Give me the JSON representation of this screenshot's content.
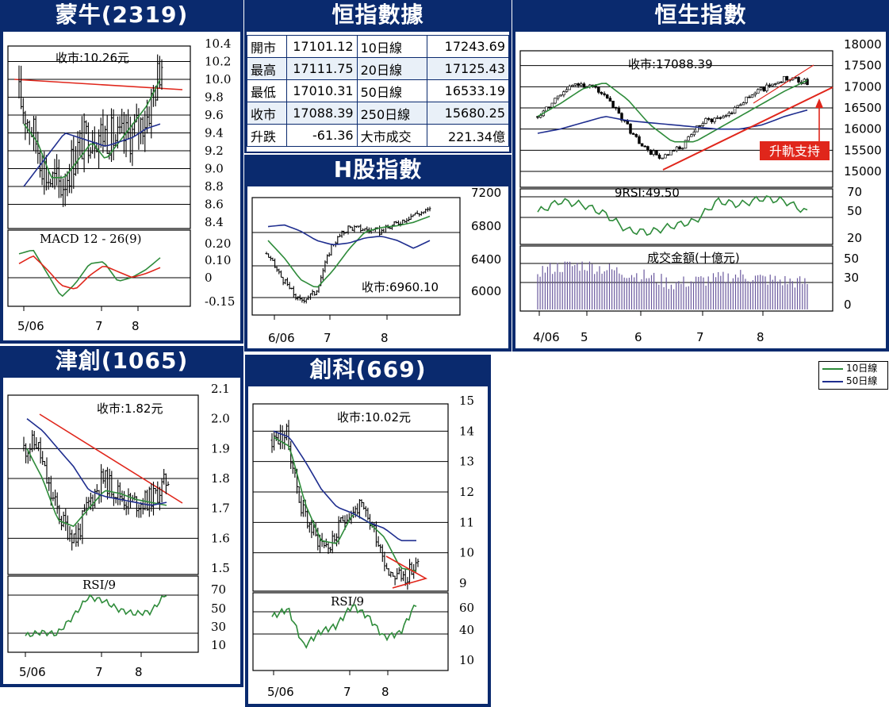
{
  "legend": {
    "ma10": "10日線",
    "ma50": "50日線",
    "ma10_color": "#2e8b3a",
    "ma50_color": "#1f2e8f"
  },
  "mengniu": {
    "title": "蒙牛(2319)",
    "close_label": "收市:10.26元",
    "indicator_label": "MACD 12 - 26(9)",
    "price_ticks": [
      "10.4",
      "10.2",
      "10.0",
      "9.8",
      "9.6",
      "9.4",
      "9.2",
      "9.0",
      "8.8",
      "8.6",
      "8.4"
    ],
    "macd_ticks": [
      "0.20",
      "0.10",
      "0",
      "-0.15"
    ],
    "x_ticks": [
      "5/06",
      "7",
      "8"
    ]
  },
  "hsi_data": {
    "title": "恒指數據",
    "rows": [
      {
        "l1": "開市",
        "v1": "17101.12",
        "l2": "10日線",
        "v2": "17243.69"
      },
      {
        "l1": "最高",
        "v1": "17111.75",
        "l2": "20日線",
        "v2": "17125.43"
      },
      {
        "l1": "最低",
        "v1": "17010.31",
        "l2": "50日線",
        "v2": "16533.19"
      },
      {
        "l1": "收市",
        "v1": "17088.39",
        "l2": "250日線",
        "v2": "15680.25"
      },
      {
        "l1": "升跌",
        "v1": "-61.36",
        "l2": "大市成交",
        "v2": "221.34億"
      }
    ]
  },
  "hshares": {
    "title": "H股指數",
    "close_label": "收市:6960.10",
    "price_ticks": [
      "7200",
      "6800",
      "6400",
      "6000"
    ],
    "x_ticks": [
      "6/06",
      "7",
      "8"
    ]
  },
  "hsi": {
    "title": "恒生指數",
    "close_label": "收市:17088.39",
    "annotation": "升軌支持",
    "rsi_label": "9RSI:49.50",
    "volume_label": "成交金額(十億元)",
    "price_ticks": [
      "18000",
      "17500",
      "17000",
      "16500",
      "16000",
      "15500",
      "15000"
    ],
    "rsi_ticks": [
      "70",
      "50",
      "20"
    ],
    "volume_ticks": [
      "50",
      "30",
      "0"
    ],
    "x_ticks": [
      "4/06",
      "5",
      "6",
      "7",
      "8"
    ]
  },
  "tianjin": {
    "title": "津創(1065)",
    "close_label": "收市:1.82元",
    "rsi_label": "RSI/9",
    "price_ticks": [
      "2.1",
      "2.0",
      "1.9",
      "1.8",
      "1.7",
      "1.6",
      "1.5"
    ],
    "rsi_ticks": [
      "70",
      "50",
      "30",
      "10"
    ],
    "x_ticks": [
      "5/06",
      "7",
      "8"
    ]
  },
  "chuangke": {
    "title": "創科(669)",
    "close_label": "收市:10.02元",
    "rsi_label": "RSI/9",
    "price_ticks": [
      "15",
      "14",
      "13",
      "12",
      "11",
      "10",
      "9"
    ],
    "rsi_ticks": [
      "60",
      "40",
      "10"
    ],
    "x_ticks": [
      "5/06",
      "7",
      "8"
    ]
  },
  "chart_data": [
    {
      "type": "line",
      "title": "蒙牛(2319)",
      "ylim": [
        8.4,
        10.4
      ],
      "last_close": 10.26,
      "series": [
        {
          "name": "10日線",
          "values": [
            9.5,
            9.3,
            8.9,
            8.9,
            9.1,
            9.3,
            9.1,
            9.3,
            9.5,
            9.7,
            10.0
          ]
        },
        {
          "name": "50日線",
          "values": [
            8.8,
            9.0,
            9.2,
            9.4,
            9.35,
            9.3,
            9.25,
            9.3,
            9.35,
            9.45,
            9.5
          ]
        }
      ],
      "macd": {
        "ylim": [
          -0.15,
          0.2
        ],
        "macd": [
          0.1,
          0.12,
          0.0,
          -0.12,
          -0.05,
          0.05,
          0.06,
          -0.04,
          -0.02,
          0.02,
          0.08
        ],
        "signal": [
          0.05,
          0.09,
          0.02,
          -0.06,
          -0.08,
          -0.01,
          0.04,
          0.01,
          -0.02,
          0.0,
          0.03
        ]
      }
    },
    {
      "type": "line",
      "title": "H股指數",
      "ylim": [
        5900,
        7200
      ],
      "last_close": 6960.1,
      "series": [
        {
          "name": "10日線",
          "values": [
            6650,
            6450,
            6200,
            6100,
            6300,
            6550,
            6750,
            6800,
            6820,
            6860,
            6930
          ]
        },
        {
          "name": "50日線",
          "values": [
            6810,
            6830,
            6760,
            6650,
            6600,
            6620,
            6680,
            6700,
            6650,
            6560,
            6650
          ]
        }
      ]
    },
    {
      "type": "line",
      "title": "恒生指數",
      "ylim": [
        15000,
        18000
      ],
      "last_close": 17088.39,
      "series": [
        {
          "name": "10日線",
          "values": [
            16300,
            16600,
            16950,
            17100,
            16700,
            16100,
            15700,
            15700,
            16000,
            16300,
            16600,
            16900,
            17150
          ]
        },
        {
          "name": "50日線",
          "values": [
            15900,
            16000,
            16150,
            16300,
            16200,
            16150,
            16100,
            16050,
            16000,
            16000,
            16100,
            16300,
            16450
          ]
        }
      ],
      "rsi": {
        "ylim": [
          20,
          70
        ],
        "values": [
          50,
          62,
          58,
          48,
          30,
          28,
          35,
          40,
          62,
          58,
          65,
          62,
          49.5
        ]
      },
      "volume": {
        "ylim": [
          0,
          50
        ],
        "values": [
          38,
          42,
          44,
          40,
          36,
          32,
          25,
          28,
          30,
          34,
          30,
          28,
          26
        ]
      }
    },
    {
      "type": "line",
      "title": "津創(1065)",
      "ylim": [
        1.5,
        2.1
      ],
      "last_close": 1.82,
      "series": [
        {
          "name": "10日線",
          "values": [
            1.9,
            1.8,
            1.66,
            1.64,
            1.7,
            1.76,
            1.75,
            1.73,
            1.72,
            1.71
          ]
        },
        {
          "name": "50日線",
          "values": [
            2.0,
            1.96,
            1.9,
            1.84,
            1.76,
            1.74,
            1.73,
            1.72,
            1.71,
            1.72
          ]
        }
      ],
      "rsi": {
        "ylim": [
          10,
          70
        ],
        "values": [
          20,
          24,
          22,
          40,
          62,
          58,
          48,
          44,
          46,
          66
        ]
      }
    },
    {
      "type": "line",
      "title": "創科(669)",
      "ylim": [
        9,
        15
      ],
      "last_close": 10.02,
      "series": [
        {
          "name": "10日線",
          "values": [
            13.8,
            13.5,
            11.6,
            10.4,
            10.3,
            11.3,
            11.0,
            10.5,
            9.5,
            9.4
          ]
        },
        {
          "name": "50日線",
          "values": [
            14.0,
            13.8,
            13.0,
            12.1,
            11.5,
            11.3,
            11.0,
            10.8,
            10.4,
            10.4
          ]
        }
      ],
      "rsi": {
        "ylim": [
          10,
          60
        ],
        "values": [
          48,
          55,
          22,
          35,
          40,
          58,
          48,
          30,
          34,
          60
        ]
      }
    }
  ]
}
